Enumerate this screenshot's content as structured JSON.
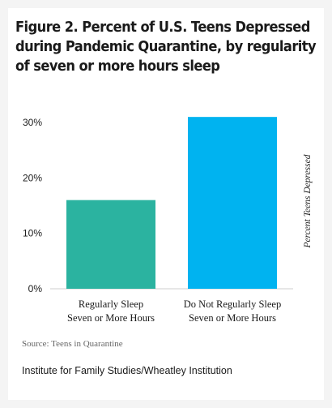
{
  "title_lines": [
    "Figure 2. Percent of U.S. Teens Depressed",
    "during Pandemic Quarantine, by regularity",
    "of seven or more hours sleep"
  ],
  "source": "Source: Teens in Quarantine",
  "footer": "Institute for Family Studies/Wheatley Institution",
  "chart_data": {
    "type": "bar",
    "categories": [
      [
        "Regularly Sleep",
        "Seven or More Hours"
      ],
      [
        "Do Not Regularly Sleep",
        "Seven or More Hours"
      ]
    ],
    "values": [
      16,
      31
    ],
    "colors": [
      "#2bb3a0",
      "#00b3f0"
    ],
    "ylabel": "Percent Teens Depressed",
    "ylim": [
      0,
      30
    ],
    "yticks": [
      0,
      10,
      20,
      30
    ],
    "ytick_labels": [
      "0%",
      "10%",
      "20%",
      "30%"
    ],
    "grid": false,
    "legend": "none"
  }
}
